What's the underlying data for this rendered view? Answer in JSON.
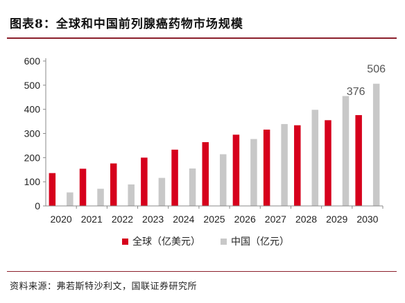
{
  "header": {
    "title": "图表8：全球和中国前列腺癌药物市场规模"
  },
  "footer": {
    "source": "资料来源：弗若斯特沙利文，国联证券研究所"
  },
  "colors": {
    "global": "#d6001c",
    "china": "#c8c8c8",
    "rule": "#8b1f2b",
    "axis": "#888888"
  },
  "chart_data": {
    "type": "bar",
    "title": "",
    "xlabel": "",
    "ylabel": "",
    "ylim": [
      0,
      600
    ],
    "yticks": [
      0,
      100,
      200,
      300,
      400,
      500,
      600
    ],
    "categories": [
      "2020",
      "2021",
      "2022",
      "2023",
      "2024",
      "2025",
      "2026",
      "2027",
      "2028",
      "2029",
      "2030"
    ],
    "series": [
      {
        "name": "全球（亿美元）",
        "values": [
          136,
          154,
          176,
          200,
          233,
          264,
          295,
          316,
          334,
          355,
          376
        ]
      },
      {
        "name": "中国（亿元）",
        "values": [
          56,
          71,
          89,
          116,
          155,
          214,
          277,
          339,
          398,
          455,
          506
        ]
      }
    ],
    "annotations": [
      {
        "series": 0,
        "category": "2030",
        "text": "376"
      },
      {
        "series": 1,
        "category": "2030",
        "text": "506"
      }
    ],
    "legend": "bottom",
    "grid": false
  }
}
